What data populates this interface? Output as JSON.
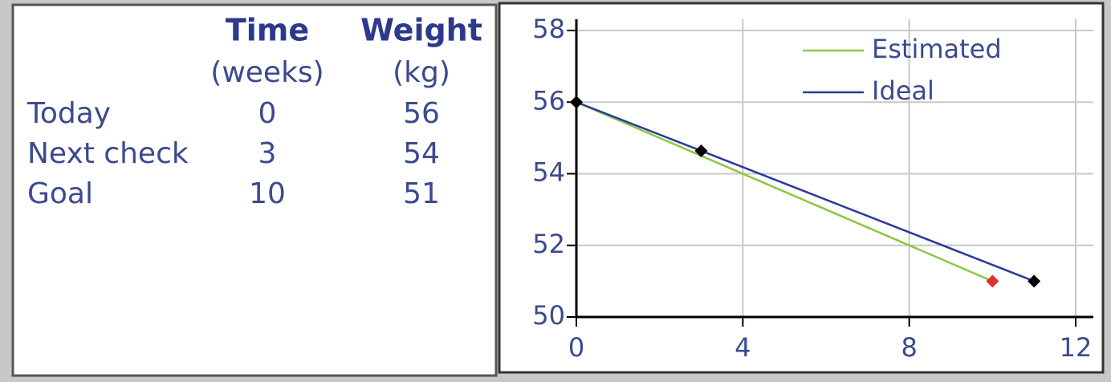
{
  "table": {
    "header": [
      "Time",
      "Weight"
    ],
    "units": [
      "(weeks)",
      "(kg)"
    ],
    "rows": [
      [
        "Today",
        "0",
        "56"
      ],
      [
        "Next check",
        "3",
        "54"
      ],
      [
        "Goal",
        "10",
        "51"
      ]
    ]
  },
  "chart_data": {
    "type": "line",
    "xlim": [
      0,
      12
    ],
    "xticks": [
      0,
      4,
      8,
      12
    ],
    "ylim": [
      50,
      58
    ],
    "yticks": [
      50,
      52,
      54,
      56,
      58
    ],
    "grid": true,
    "legend": "upper right",
    "series": [
      {
        "name": "Estimated",
        "color": "#8cc63f",
        "marker_color": "#e03030",
        "x": [
          0,
          10
        ],
        "values": [
          56,
          51
        ]
      },
      {
        "name": "Ideal",
        "color": "#2b3a9c",
        "marker_color": "#000000",
        "x": [
          0,
          3,
          11
        ],
        "values": [
          56,
          54.64,
          51
        ]
      }
    ]
  }
}
